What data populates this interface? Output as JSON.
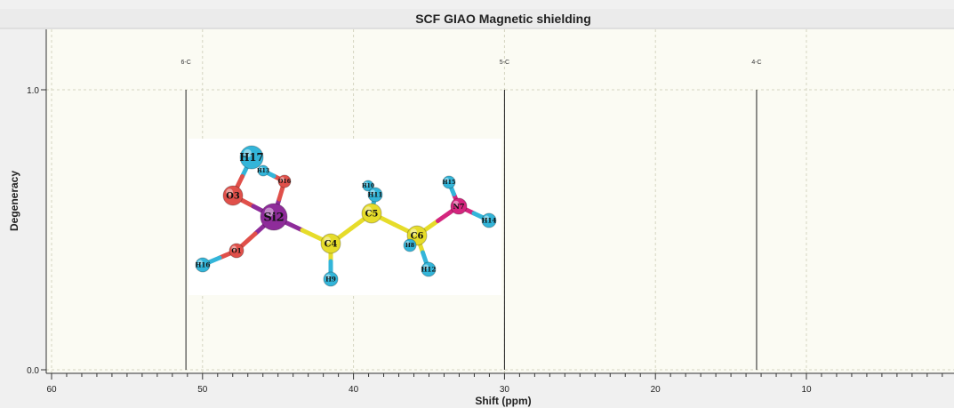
{
  "chart_data": {
    "type": "bar",
    "title": "SCF GIAO Magnetic shielding",
    "xlabel": "Shift (ppm)",
    "ylabel": "Degeneracy",
    "xlim": [
      60,
      0
    ],
    "ylim": [
      0.0,
      1.0
    ],
    "x_reversed": true,
    "x_ticks": [
      60,
      50,
      40,
      30,
      20,
      10
    ],
    "y_ticks": [
      "0.0",
      "1.0"
    ],
    "grid": true,
    "peaks": [
      {
        "label": "6-C",
        "x": 51.1,
        "y": 1.0
      },
      {
        "label": "5-C",
        "x": 30.0,
        "y": 1.0
      },
      {
        "label": "4-C",
        "x": 13.3,
        "y": 1.0
      }
    ],
    "colors": {
      "plot_background": "#fbfbf3",
      "window_background": "#f0f0f0",
      "peak_line": "#222222",
      "grid": "#d4d4c0"
    }
  },
  "molecule": {
    "atoms": [
      {
        "label": "H17",
        "color": "#33b5d9"
      },
      {
        "label": "H13",
        "color": "#33b5d9"
      },
      {
        "label": "O16",
        "color": "#e0504a"
      },
      {
        "label": "O3",
        "color": "#e0504a"
      },
      {
        "label": "Si2",
        "color": "#8e2c9a"
      },
      {
        "label": "O1",
        "color": "#e0504a"
      },
      {
        "label": "H16",
        "color": "#33b5d9"
      },
      {
        "label": "C4",
        "color": "#e6dc2a"
      },
      {
        "label": "H9",
        "color": "#33b5d9"
      },
      {
        "label": "H10",
        "color": "#33b5d9"
      },
      {
        "label": "H11",
        "color": "#33b5d9"
      },
      {
        "label": "C5",
        "color": "#e6dc2a"
      },
      {
        "label": "C6",
        "color": "#e6dc2a"
      },
      {
        "label": "H8",
        "color": "#33b5d9"
      },
      {
        "label": "H12",
        "color": "#33b5d9"
      },
      {
        "label": "N7",
        "color": "#d4257e"
      },
      {
        "label": "H15",
        "color": "#33b5d9"
      },
      {
        "label": "H14",
        "color": "#33b5d9"
      }
    ]
  }
}
